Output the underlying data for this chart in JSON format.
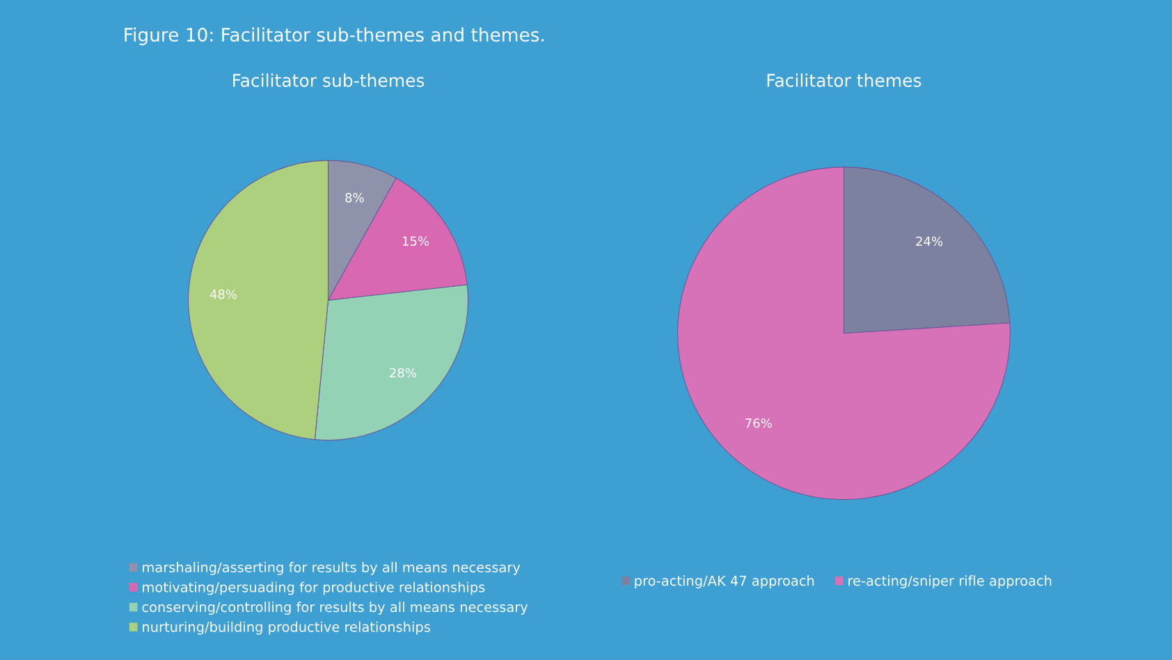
{
  "chart_data": [
    {
      "type": "pie",
      "title": "Facilitator sub-themes",
      "annotations": [
        "Figure 10: Facilitator sub-themes and themes."
      ],
      "categories": [
        "marshaling/asserting for results by all means necessary",
        "motivating/persuading for productive relationships",
        "conserving/controlling for results by all means necessary",
        "nurturing/building productive relationships"
      ],
      "values": [
        8,
        15,
        28,
        48
      ],
      "value_labels": [
        "8%",
        "15%",
        "28%",
        "48%"
      ],
      "colors": [
        "#8e93ab",
        "#d868b2",
        "#94d2b6",
        "#acd07e"
      ],
      "legend": "bottom"
    },
    {
      "type": "pie",
      "title": "Facilitator themes",
      "categories": [
        "pro-acting/AK 47 approach",
        "re-acting/sniper rifle approach"
      ],
      "values": [
        24,
        76
      ],
      "value_labels": [
        "24%",
        "76%"
      ],
      "colors": [
        "#7c819f",
        "#d872b8"
      ],
      "legend": "bottom"
    }
  ]
}
